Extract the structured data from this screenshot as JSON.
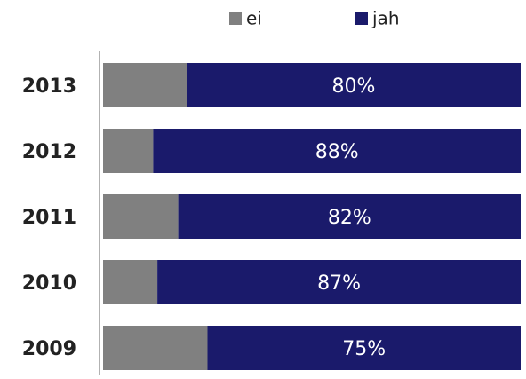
{
  "chart_data": {
    "type": "stacked_barh",
    "categories": [
      "2013",
      "2012",
      "2011",
      "2010",
      "2009"
    ],
    "series": [
      {
        "name": "ei",
        "color": "#808080",
        "values": [
          20,
          12,
          18,
          13,
          25
        ]
      },
      {
        "name": "jah",
        "color": "#1a1a6b",
        "values": [
          80,
          88,
          82,
          87,
          75
        ],
        "value_labels": [
          "80%",
          "88%",
          "82%",
          "87%",
          "75%"
        ]
      }
    ],
    "legend": "top"
  }
}
